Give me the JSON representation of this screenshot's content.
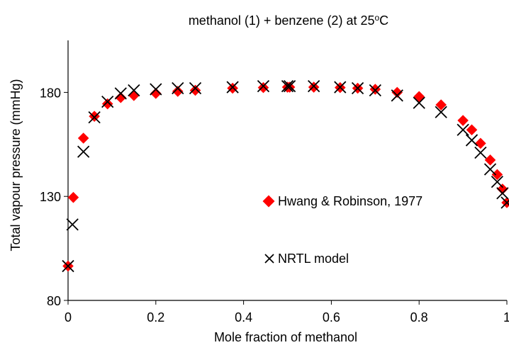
{
  "chart_data": {
    "type": "scatter",
    "title_parts": {
      "main": "methanol (1) + benzene (2) at 25",
      "superscript": "o",
      "end": "C"
    },
    "xlabel": "Mole fraction of methanol",
    "ylabel": "Total vapour pressure (mmHg)",
    "xlim": [
      0,
      1
    ],
    "ylim": [
      80,
      205
    ],
    "xticks": [
      {
        "value": 0,
        "label": "0"
      },
      {
        "value": 0.2,
        "label": "0.2"
      },
      {
        "value": 0.4,
        "label": "0.4"
      },
      {
        "value": 0.6,
        "label": "0.6"
      },
      {
        "value": 0.8,
        "label": "0.8"
      },
      {
        "value": 1,
        "label": "1"
      }
    ],
    "yticks": [
      {
        "value": 80,
        "label": "80"
      },
      {
        "value": 130,
        "label": "130"
      },
      {
        "value": 180,
        "label": "180"
      }
    ],
    "grid": false,
    "legend_position": "lower-center",
    "series": [
      {
        "name": "Hwang & Robinson, 1977",
        "marker": "diamond",
        "color": "#ff0000",
        "points": [
          {
            "x": 0.0,
            "y": 96.5
          },
          {
            "x": 0.012,
            "y": 129.5
          },
          {
            "x": 0.035,
            "y": 158.0
          },
          {
            "x": 0.06,
            "y": 168.5
          },
          {
            "x": 0.09,
            "y": 174.5
          },
          {
            "x": 0.12,
            "y": 177.5
          },
          {
            "x": 0.15,
            "y": 178.5
          },
          {
            "x": 0.2,
            "y": 179.5
          },
          {
            "x": 0.25,
            "y": 180.5
          },
          {
            "x": 0.29,
            "y": 181.0
          },
          {
            "x": 0.375,
            "y": 182.0
          },
          {
            "x": 0.445,
            "y": 182.3
          },
          {
            "x": 0.5,
            "y": 182.5
          },
          {
            "x": 0.505,
            "y": 182.5
          },
          {
            "x": 0.56,
            "y": 182.5
          },
          {
            "x": 0.62,
            "y": 182.3
          },
          {
            "x": 0.66,
            "y": 182.0
          },
          {
            "x": 0.7,
            "y": 181.5
          },
          {
            "x": 0.75,
            "y": 180.0
          },
          {
            "x": 0.8,
            "y": 178.0
          },
          {
            "x": 0.85,
            "y": 174.0
          },
          {
            "x": 0.9,
            "y": 166.5
          },
          {
            "x": 0.92,
            "y": 162.0
          },
          {
            "x": 0.94,
            "y": 155.5
          },
          {
            "x": 0.962,
            "y": 147.5
          },
          {
            "x": 0.978,
            "y": 140.5
          },
          {
            "x": 0.99,
            "y": 133.5
          },
          {
            "x": 1.0,
            "y": 127.0
          }
        ]
      },
      {
        "name": "NRTL model",
        "marker": "x",
        "color": "#000000",
        "points": [
          {
            "x": 0.0,
            "y": 96.5
          },
          {
            "x": 0.01,
            "y": 116.5
          },
          {
            "x": 0.035,
            "y": 151.5
          },
          {
            "x": 0.06,
            "y": 168.0
          },
          {
            "x": 0.09,
            "y": 175.5
          },
          {
            "x": 0.12,
            "y": 179.5
          },
          {
            "x": 0.15,
            "y": 181.0
          },
          {
            "x": 0.2,
            "y": 181.5
          },
          {
            "x": 0.25,
            "y": 182.0
          },
          {
            "x": 0.29,
            "y": 182.0
          },
          {
            "x": 0.375,
            "y": 182.5
          },
          {
            "x": 0.445,
            "y": 183.0
          },
          {
            "x": 0.5,
            "y": 183.0
          },
          {
            "x": 0.505,
            "y": 183.0
          },
          {
            "x": 0.56,
            "y": 183.0
          },
          {
            "x": 0.62,
            "y": 182.5
          },
          {
            "x": 0.66,
            "y": 182.0
          },
          {
            "x": 0.7,
            "y": 181.0
          },
          {
            "x": 0.75,
            "y": 178.5
          },
          {
            "x": 0.8,
            "y": 175.0
          },
          {
            "x": 0.85,
            "y": 170.5
          },
          {
            "x": 0.9,
            "y": 162.0
          },
          {
            "x": 0.92,
            "y": 157.0
          },
          {
            "x": 0.94,
            "y": 151.0
          },
          {
            "x": 0.962,
            "y": 143.0
          },
          {
            "x": 0.978,
            "y": 137.0
          },
          {
            "x": 0.99,
            "y": 131.5
          },
          {
            "x": 1.0,
            "y": 127.0
          }
        ]
      }
    ]
  }
}
